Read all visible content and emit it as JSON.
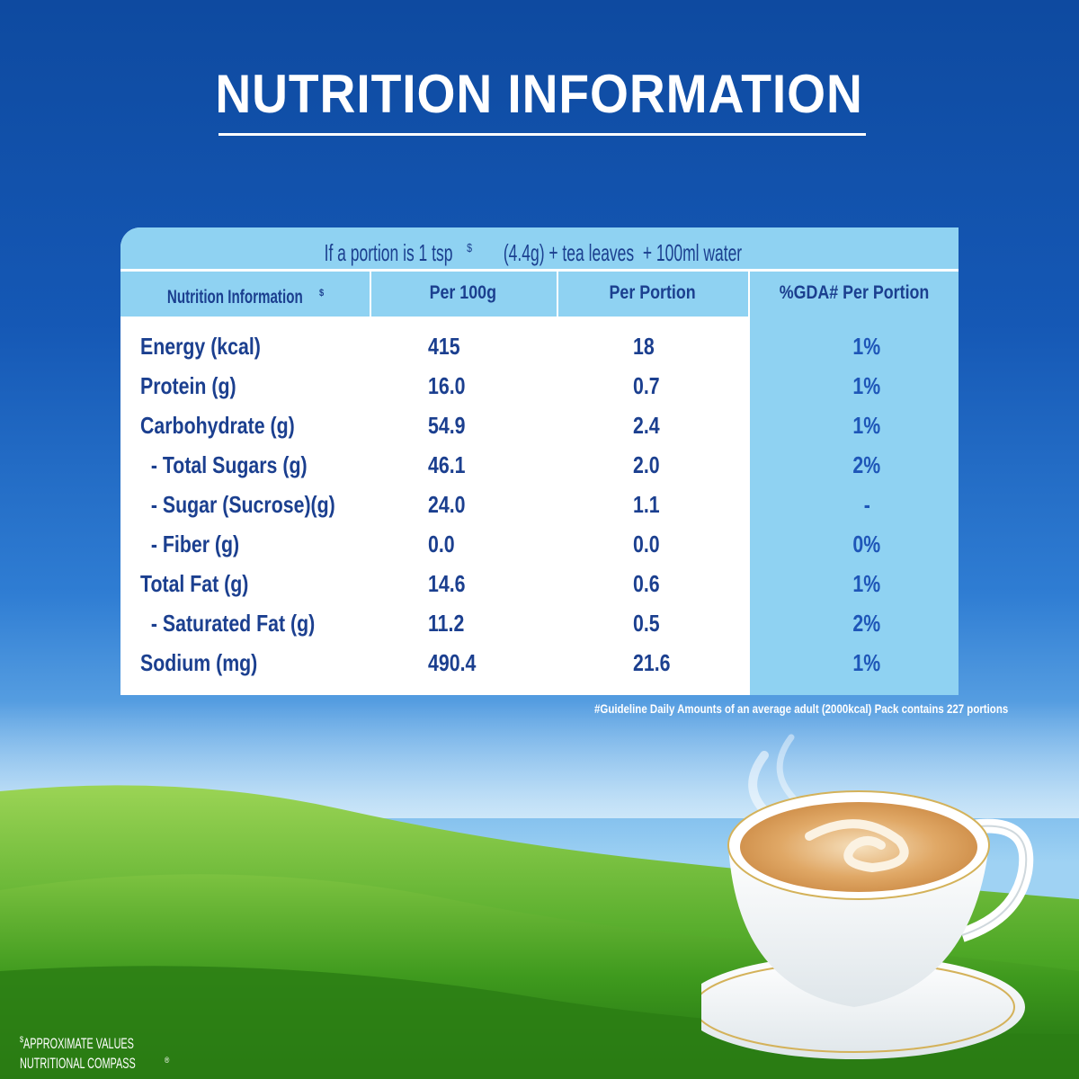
{
  "title": "NUTRITION INFORMATION",
  "table": {
    "portion_note_pre": "If a portion is 1 tsp",
    "portion_note_sup": "$",
    "portion_note_post": " (4.4g) + tea leaves  + 100ml water",
    "headers": {
      "name": "Nutrition Information",
      "name_sup": "$",
      "per100": "Per 100g",
      "per_portion": "Per Portion",
      "gda": "%GDA# Per Portion"
    },
    "rows": [
      {
        "name": "Energy (kcal)",
        "per100": "415",
        "per_portion": "18",
        "gda": "1%"
      },
      {
        "name": "Protein (g)",
        "per100": "16.0",
        "per_portion": "0.7",
        "gda": "1%"
      },
      {
        "name": "Carbohydrate (g)",
        "per100": "54.9",
        "per_portion": "2.4",
        "gda": "1%"
      },
      {
        "name": "  - Total Sugars (g)",
        "per100": "46.1",
        "per_portion": "2.0",
        "gda": "2%"
      },
      {
        "name": "  - Sugar (Sucrose)(g)",
        "per100": "24.0",
        "per_portion": "1.1",
        "gda": "-"
      },
      {
        "name": "  - Fiber (g)",
        "per100": "0.0",
        "per_portion": "0.0",
        "gda": "0%"
      },
      {
        "name": "Total Fat (g)",
        "per100": "14.6",
        "per_portion": "0.6",
        "gda": "1%"
      },
      {
        "name": "  - Saturated Fat (g)",
        "per100": "11.2",
        "per_portion": "0.5",
        "gda": "2%"
      },
      {
        "name": "Sodium (mg)",
        "per100": "490.4",
        "per_portion": "21.6",
        "gda": "1%"
      }
    ]
  },
  "footnote": "#Guideline Daily Amounts of an average adult (2000kcal) Pack contains 227 portions",
  "bottom_notes": {
    "approx_sup": "$",
    "approx": "APPROXIMATE VALUES",
    "compass": "NUTRITIONAL COMPASS",
    "compass_mark": "®"
  },
  "icons": {
    "cup": "tea-cup-illustration"
  },
  "colors": {
    "banner": "#8fd2f2",
    "text_dark": "#1b3f8f",
    "sky_top": "#0e4aa0",
    "grass": "#3f9a1e"
  }
}
